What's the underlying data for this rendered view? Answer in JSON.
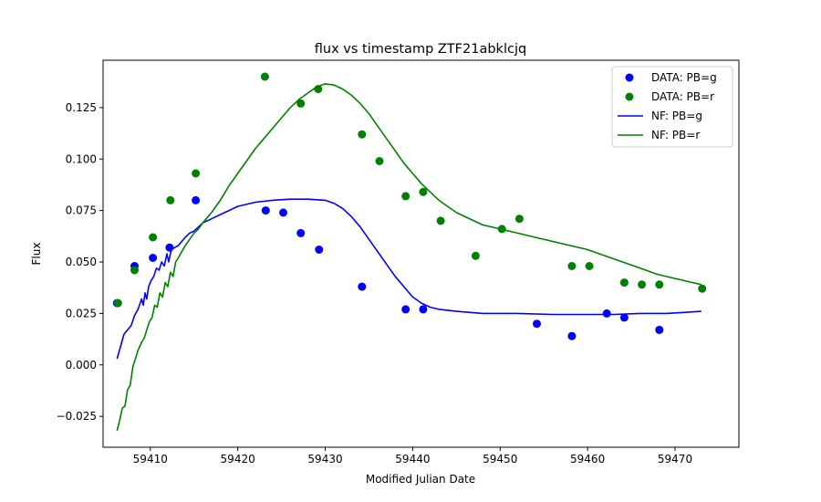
{
  "chart_data": {
    "type": "scatter",
    "title": "flux vs timestamp ZTF21abklcjq",
    "xlabel": "Modified Julian Date",
    "ylabel": "Flux",
    "xlim": [
      59404.6,
      59477.3
    ],
    "ylim": [
      -0.04,
      0.148
    ],
    "xticks": [
      59410,
      59420,
      59430,
      59440,
      59450,
      59460,
      59470
    ],
    "yticks": [
      -0.025,
      0.0,
      0.025,
      0.05,
      0.075,
      0.1,
      0.125
    ],
    "xtick_labels": [
      "59410",
      "59420",
      "59430",
      "59440",
      "59450",
      "59460",
      "59470"
    ],
    "ytick_labels": [
      "−0.025",
      "0.000",
      "0.025",
      "0.050",
      "0.075",
      "0.100",
      "0.125"
    ],
    "grid": false,
    "legend_position": "top-right",
    "series": [
      {
        "name": "DATA: PB=g",
        "kind": "scatter",
        "color": "#0000ff",
        "points": [
          [
            59406.2,
            0.03
          ],
          [
            59408.2,
            0.048
          ],
          [
            59410.3,
            0.052
          ],
          [
            59412.2,
            0.057
          ],
          [
            59415.2,
            0.08
          ],
          [
            59423.2,
            0.075
          ],
          [
            59425.2,
            0.074
          ],
          [
            59427.2,
            0.064
          ],
          [
            59429.3,
            0.056
          ],
          [
            59434.2,
            0.038
          ],
          [
            59439.2,
            0.027
          ],
          [
            59441.2,
            0.027
          ],
          [
            59454.2,
            0.02
          ],
          [
            59458.2,
            0.014
          ],
          [
            59462.2,
            0.025
          ],
          [
            59464.2,
            0.023
          ],
          [
            59468.2,
            0.017
          ]
        ]
      },
      {
        "name": "DATA: PB=r",
        "kind": "scatter",
        "color": "#008000",
        "points": [
          [
            59406.3,
            0.03
          ],
          [
            59408.2,
            0.046
          ],
          [
            59410.3,
            0.062
          ],
          [
            59412.3,
            0.08
          ],
          [
            59415.2,
            0.093
          ],
          [
            59423.1,
            0.14
          ],
          [
            59427.2,
            0.127
          ],
          [
            59429.2,
            0.134
          ],
          [
            59434.2,
            0.112
          ],
          [
            59436.2,
            0.099
          ],
          [
            59439.2,
            0.082
          ],
          [
            59441.2,
            0.084
          ],
          [
            59443.2,
            0.07
          ],
          [
            59447.2,
            0.053
          ],
          [
            59450.2,
            0.066
          ],
          [
            59452.2,
            0.071
          ],
          [
            59458.2,
            0.048
          ],
          [
            59460.2,
            0.048
          ],
          [
            59464.2,
            0.04
          ],
          [
            59466.2,
            0.039
          ],
          [
            59468.2,
            0.039
          ],
          [
            59473.1,
            0.037
          ]
        ]
      },
      {
        "name": "NF: PB=g",
        "kind": "line",
        "color": "#0000ff",
        "points": [
          [
            59406.2,
            0.003
          ],
          [
            59406.6,
            0.009
          ],
          [
            59407.0,
            0.015
          ],
          [
            59407.4,
            0.017
          ],
          [
            59407.8,
            0.019
          ],
          [
            59408.2,
            0.024
          ],
          [
            59408.6,
            0.027
          ],
          [
            59409.0,
            0.032
          ],
          [
            59409.2,
            0.029
          ],
          [
            59409.4,
            0.035
          ],
          [
            59409.6,
            0.032
          ],
          [
            59409.8,
            0.038
          ],
          [
            59410.1,
            0.041
          ],
          [
            59410.4,
            0.043
          ],
          [
            59410.7,
            0.047
          ],
          [
            59411.0,
            0.046
          ],
          [
            59411.3,
            0.05
          ],
          [
            59411.6,
            0.048
          ],
          [
            59411.9,
            0.054
          ],
          [
            59412.1,
            0.05
          ],
          [
            59412.4,
            0.056
          ],
          [
            59412.8,
            0.057
          ],
          [
            59413.2,
            0.058
          ],
          [
            59413.6,
            0.06
          ],
          [
            59414.0,
            0.062
          ],
          [
            59414.5,
            0.064
          ],
          [
            59415.0,
            0.065
          ],
          [
            59415.5,
            0.067
          ],
          [
            59416.0,
            0.069
          ],
          [
            59417.0,
            0.071
          ],
          [
            59418.0,
            0.073
          ],
          [
            59419.0,
            0.075
          ],
          [
            59420.0,
            0.077
          ],
          [
            59421.0,
            0.078
          ],
          [
            59422.0,
            0.079
          ],
          [
            59423.0,
            0.0795
          ],
          [
            59424.0,
            0.08
          ],
          [
            59426.0,
            0.0805
          ],
          [
            59428.0,
            0.0805
          ],
          [
            59430.0,
            0.08
          ],
          [
            59431.0,
            0.0785
          ],
          [
            59432.0,
            0.076
          ],
          [
            59433.0,
            0.072
          ],
          [
            59434.0,
            0.067
          ],
          [
            59435.0,
            0.061
          ],
          [
            59436.0,
            0.055
          ],
          [
            59437.0,
            0.049
          ],
          [
            59438.0,
            0.043
          ],
          [
            59439.0,
            0.038
          ],
          [
            59440.0,
            0.033
          ],
          [
            59441.0,
            0.03
          ],
          [
            59442.0,
            0.028
          ],
          [
            59443.0,
            0.027
          ],
          [
            59445.0,
            0.026
          ],
          [
            59448.0,
            0.025
          ],
          [
            59452.0,
            0.025
          ],
          [
            59456.0,
            0.0245
          ],
          [
            59460.0,
            0.0245
          ],
          [
            59463.0,
            0.0245
          ],
          [
            59466.0,
            0.025
          ],
          [
            59469.0,
            0.025
          ],
          [
            59471.0,
            0.0255
          ],
          [
            59473.0,
            0.026
          ]
        ]
      },
      {
        "name": "NF: PB=r",
        "kind": "line",
        "color": "#008000",
        "points": [
          [
            59406.2,
            -0.032
          ],
          [
            59406.5,
            -0.027
          ],
          [
            59406.8,
            -0.021
          ],
          [
            59407.1,
            -0.02
          ],
          [
            59407.4,
            -0.012
          ],
          [
            59407.7,
            -0.01
          ],
          [
            59408.0,
            -0.001
          ],
          [
            59408.3,
            0.003
          ],
          [
            59408.6,
            0.007
          ],
          [
            59409.0,
            0.011
          ],
          [
            59409.3,
            0.013
          ],
          [
            59409.6,
            0.017
          ],
          [
            59409.9,
            0.021
          ],
          [
            59410.2,
            0.023
          ],
          [
            59410.5,
            0.029
          ],
          [
            59410.8,
            0.028
          ],
          [
            59411.1,
            0.035
          ],
          [
            59411.4,
            0.033
          ],
          [
            59411.7,
            0.04
          ],
          [
            59412.0,
            0.038
          ],
          [
            59412.3,
            0.045
          ],
          [
            59412.6,
            0.043
          ],
          [
            59412.9,
            0.05
          ],
          [
            59413.2,
            0.052
          ],
          [
            59413.6,
            0.055
          ],
          [
            59414.0,
            0.058
          ],
          [
            59414.5,
            0.061
          ],
          [
            59415.0,
            0.064
          ],
          [
            59415.5,
            0.066
          ],
          [
            59416.0,
            0.069
          ],
          [
            59417.0,
            0.074
          ],
          [
            59418.0,
            0.08
          ],
          [
            59419.0,
            0.087
          ],
          [
            59420.0,
            0.093
          ],
          [
            59421.0,
            0.099
          ],
          [
            59422.0,
            0.105
          ],
          [
            59423.0,
            0.11
          ],
          [
            59424.0,
            0.115
          ],
          [
            59425.0,
            0.12
          ],
          [
            59426.0,
            0.125
          ],
          [
            59427.0,
            0.129
          ],
          [
            59428.0,
            0.132
          ],
          [
            59429.0,
            0.135
          ],
          [
            59430.0,
            0.1365
          ],
          [
            59431.0,
            0.136
          ],
          [
            59432.0,
            0.134
          ],
          [
            59433.0,
            0.131
          ],
          [
            59434.0,
            0.127
          ],
          [
            59435.0,
            0.122
          ],
          [
            59436.0,
            0.116
          ],
          [
            59437.0,
            0.11
          ],
          [
            59438.0,
            0.104
          ],
          [
            59439.0,
            0.098
          ],
          [
            59440.0,
            0.093
          ],
          [
            59441.0,
            0.088
          ],
          [
            59442.0,
            0.084
          ],
          [
            59443.0,
            0.08
          ],
          [
            59444.0,
            0.077
          ],
          [
            59445.0,
            0.074
          ],
          [
            59446.0,
            0.072
          ],
          [
            59447.0,
            0.07
          ],
          [
            59448.0,
            0.068
          ],
          [
            59450.0,
            0.066
          ],
          [
            59452.0,
            0.064
          ],
          [
            59454.0,
            0.062
          ],
          [
            59456.0,
            0.06
          ],
          [
            59458.0,
            0.058
          ],
          [
            59460.0,
            0.056
          ],
          [
            59462.0,
            0.053
          ],
          [
            59464.0,
            0.05
          ],
          [
            59466.0,
            0.047
          ],
          [
            59468.0,
            0.044
          ],
          [
            59470.0,
            0.042
          ],
          [
            59472.0,
            0.04
          ],
          [
            59473.0,
            0.039
          ]
        ]
      }
    ]
  }
}
